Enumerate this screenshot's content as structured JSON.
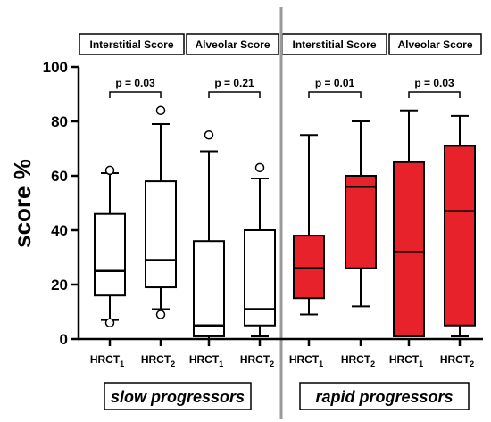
{
  "chart_data": {
    "type": "box",
    "ylabel": "score %",
    "ylim": [
      0,
      100
    ],
    "yticks": [
      0,
      20,
      40,
      60,
      80,
      100
    ],
    "categories": [
      {
        "label": "HRCT",
        "sub": "1"
      },
      {
        "label": "HRCT",
        "sub": "2"
      },
      {
        "label": "HRCT",
        "sub": "1"
      },
      {
        "label": "HRCT",
        "sub": "2"
      },
      {
        "label": "HRCT",
        "sub": "1"
      },
      {
        "label": "HRCT",
        "sub": "2"
      },
      {
        "label": "HRCT",
        "sub": "1"
      },
      {
        "label": "HRCT",
        "sub": "2"
      }
    ],
    "boxes": [
      {
        "whisker_low": 7,
        "q1": 16,
        "median": 25,
        "q3": 46,
        "whisker_high": 61,
        "outliers": [
          6,
          62
        ],
        "fill": "white"
      },
      {
        "whisker_low": 11,
        "q1": 19,
        "median": 29,
        "q3": 58,
        "whisker_high": 79,
        "outliers": [
          9,
          84
        ],
        "fill": "white"
      },
      {
        "whisker_low": 0,
        "q1": 1,
        "median": 5,
        "q3": 36,
        "whisker_high": 69,
        "outliers": [
          75
        ],
        "fill": "white"
      },
      {
        "whisker_low": 1,
        "q1": 5,
        "median": 11,
        "q3": 40,
        "whisker_high": 59,
        "outliers": [
          63
        ],
        "fill": "white"
      },
      {
        "whisker_low": 9,
        "q1": 15,
        "median": 26,
        "q3": 38,
        "whisker_high": 75,
        "outliers": [],
        "fill": "red"
      },
      {
        "whisker_low": 12,
        "q1": 26,
        "median": 56,
        "q3": 60,
        "whisker_high": 80,
        "outliers": [],
        "fill": "red"
      },
      {
        "whisker_low": 1,
        "q1": 1,
        "median": 32,
        "q3": 65,
        "whisker_high": 84,
        "outliers": [],
        "fill": "red"
      },
      {
        "whisker_low": 1,
        "q1": 5,
        "median": 47,
        "q3": 71,
        "whisker_high": 82,
        "outliers": [],
        "fill": "red"
      }
    ],
    "headers": [
      "Interstitial Score",
      "Alveolar Score",
      "Interstitial Score",
      "Alveolar Score"
    ],
    "pvalues": [
      "p = 0.03",
      "p = 0.21",
      "p = 0.01",
      "p = 0.03"
    ],
    "groups": [
      "slow progressors",
      "rapid progressors"
    ],
    "colors": {
      "red": "#e8222a",
      "white": "#ffffff",
      "divider": "#9a9a9a"
    }
  }
}
